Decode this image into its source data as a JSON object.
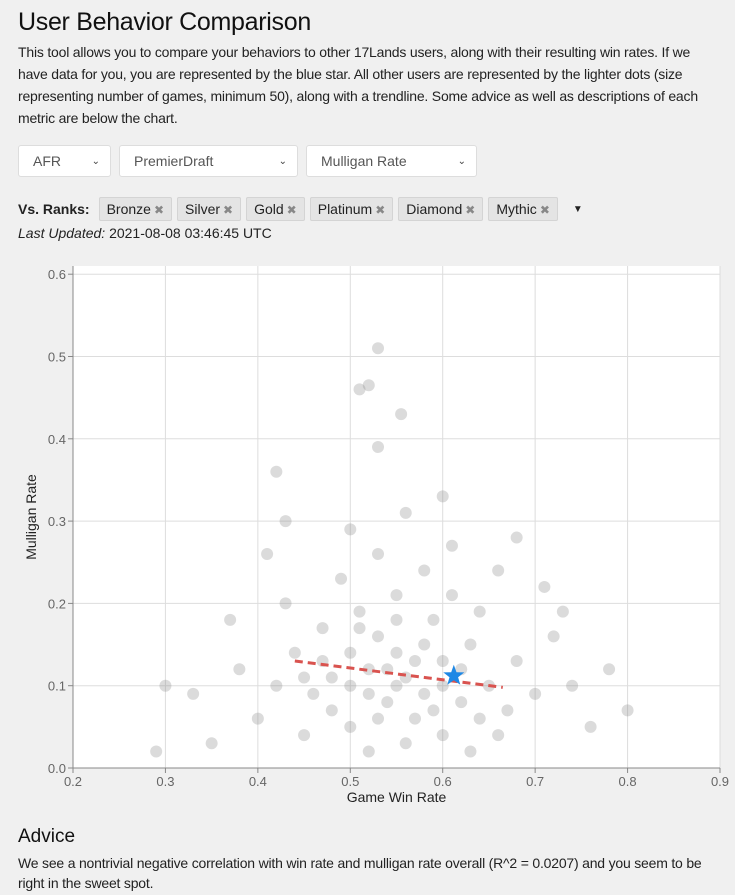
{
  "header": {
    "title": "User Behavior Comparison",
    "description": "This tool allows you to compare your behaviors to other 17Lands users, along with their resulting win rates. If we have data for you, you are represented by the blue star. All other users are represented by the lighter dots (size representing number of games, minimum 50), along with a trendline. Some advice as well as descriptions of each metric are below the chart."
  },
  "filters": {
    "set": "AFR",
    "format": "PremierDraft",
    "metric": "Mulligan Rate"
  },
  "ranks": {
    "label": "Vs. Ranks:",
    "chips": [
      "Bronze",
      "Silver",
      "Gold",
      "Platinum",
      "Diamond",
      "Mythic"
    ]
  },
  "updated": {
    "label": "Last Updated:",
    "value": "2021-08-08 03:46:45 UTC"
  },
  "advice": {
    "title": "Advice",
    "text": "We see a nontrivial negative correlation with win rate and mulligan rate overall (R^2 = 0.0207) and you seem to be right in the sweet spot."
  },
  "chart_data": {
    "type": "scatter",
    "xlabel": "Game Win Rate",
    "ylabel": "Mulligan Rate",
    "xlim": [
      0.2,
      0.9
    ],
    "ylim": [
      0,
      0.61
    ],
    "xticks": [
      "0.2",
      "0.3",
      "0.4",
      "0.5",
      "0.6",
      "0.7",
      "0.8",
      "0.9"
    ],
    "yticks": [
      "0.0",
      "0.1",
      "0.2",
      "0.3",
      "0.4",
      "0.5",
      "0.6"
    ],
    "grid": true,
    "colors": {
      "dots": "#888888",
      "trend": "#d9534f",
      "user": "#1e88e5"
    },
    "user": {
      "x": 0.612,
      "y": 0.112
    },
    "trendline": [
      [
        0.44,
        0.13
      ],
      [
        0.665,
        0.098
      ]
    ],
    "points": [
      [
        0.5,
        0.1
      ],
      [
        0.52,
        0.12
      ],
      [
        0.54,
        0.08
      ],
      [
        0.56,
        0.11
      ],
      [
        0.58,
        0.09
      ],
      [
        0.55,
        0.14
      ],
      [
        0.53,
        0.16
      ],
      [
        0.57,
        0.06
      ],
      [
        0.6,
        0.13
      ],
      [
        0.62,
        0.08
      ],
      [
        0.48,
        0.11
      ],
      [
        0.5,
        0.05
      ],
      [
        0.46,
        0.09
      ],
      [
        0.51,
        0.19
      ],
      [
        0.55,
        0.21
      ],
      [
        0.59,
        0.18
      ],
      [
        0.63,
        0.15
      ],
      [
        0.65,
        0.1
      ],
      [
        0.67,
        0.07
      ],
      [
        0.44,
        0.14
      ],
      [
        0.47,
        0.17
      ],
      [
        0.49,
        0.23
      ],
      [
        0.53,
        0.26
      ],
      [
        0.58,
        0.24
      ],
      [
        0.61,
        0.21
      ],
      [
        0.64,
        0.19
      ],
      [
        0.68,
        0.13
      ],
      [
        0.7,
        0.09
      ],
      [
        0.42,
        0.1
      ],
      [
        0.45,
        0.04
      ],
      [
        0.52,
        0.02
      ],
      [
        0.56,
        0.03
      ],
      [
        0.6,
        0.04
      ],
      [
        0.63,
        0.02
      ],
      [
        0.66,
        0.04
      ],
      [
        0.4,
        0.06
      ],
      [
        0.38,
        0.12
      ],
      [
        0.43,
        0.2
      ],
      [
        0.5,
        0.29
      ],
      [
        0.56,
        0.31
      ],
      [
        0.61,
        0.27
      ],
      [
        0.66,
        0.24
      ],
      [
        0.72,
        0.16
      ],
      [
        0.74,
        0.1
      ],
      [
        0.76,
        0.05
      ],
      [
        0.35,
        0.03
      ],
      [
        0.3,
        0.1
      ],
      [
        0.29,
        0.02
      ],
      [
        0.33,
        0.09
      ],
      [
        0.37,
        0.18
      ],
      [
        0.41,
        0.26
      ],
      [
        0.43,
        0.3
      ],
      [
        0.42,
        0.36
      ],
      [
        0.53,
        0.39
      ],
      [
        0.555,
        0.43
      ],
      [
        0.51,
        0.46
      ],
      [
        0.52,
        0.465
      ],
      [
        0.53,
        0.51
      ],
      [
        0.6,
        0.33
      ],
      [
        0.68,
        0.28
      ],
      [
        0.71,
        0.22
      ],
      [
        0.73,
        0.19
      ],
      [
        0.78,
        0.12
      ],
      [
        0.8,
        0.07
      ],
      [
        0.54,
        0.12
      ],
      [
        0.55,
        0.1
      ],
      [
        0.57,
        0.13
      ],
      [
        0.52,
        0.09
      ],
      [
        0.5,
        0.14
      ],
      [
        0.58,
        0.15
      ],
      [
        0.6,
        0.1
      ],
      [
        0.53,
        0.06
      ],
      [
        0.48,
        0.07
      ],
      [
        0.59,
        0.07
      ],
      [
        0.62,
        0.12
      ],
      [
        0.51,
        0.17
      ],
      [
        0.55,
        0.18
      ],
      [
        0.47,
        0.13
      ],
      [
        0.64,
        0.06
      ],
      [
        0.45,
        0.11
      ]
    ]
  }
}
